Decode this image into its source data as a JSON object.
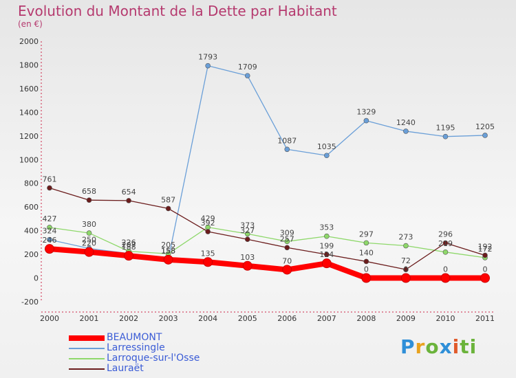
{
  "title": "Evolution du Montant de la Dette par Habitant",
  "subtitle": "(en €)",
  "logo": [
    "P",
    "r",
    "o",
    "x",
    "i",
    "ti"
  ],
  "chart_data": {
    "type": "line",
    "x": [
      "2000",
      "2001",
      "2002",
      "2003",
      "2004",
      "2005",
      "2006",
      "2007",
      "2008",
      "2009",
      "2010",
      "2011"
    ],
    "ylim": [
      -200,
      2000
    ],
    "yticks": [
      -200,
      0,
      200,
      400,
      600,
      800,
      1000,
      1200,
      1400,
      1600,
      1800,
      2000
    ],
    "grid": false,
    "legend_position": "bottom-left",
    "series": [
      {
        "name": "BEAUMONT",
        "color": "#ff0000",
        "values": [
          246,
          220,
          188,
          155,
          135,
          103,
          70,
          124,
          0,
          0,
          0,
          0
        ]
      },
      {
        "name": "Larressingle",
        "color": "#6a9fd8",
        "values": [
          324,
          250,
          207,
          158,
          1793,
          1709,
          1087,
          1035,
          1329,
          1240,
          1195,
          1205
        ]
      },
      {
        "name": "Larroque-sur-l'Osse",
        "color": "#8ed86a",
        "values": [
          427,
          380,
          226,
          205,
          429,
          373,
          309,
          353,
          297,
          273,
          219,
          172
        ]
      },
      {
        "name": "Lauraët",
        "color": "#6b1c1c",
        "values": [
          761,
          658,
          654,
          587,
          392,
          327,
          257,
          199,
          140,
          72,
          296,
          192
        ]
      }
    ]
  }
}
